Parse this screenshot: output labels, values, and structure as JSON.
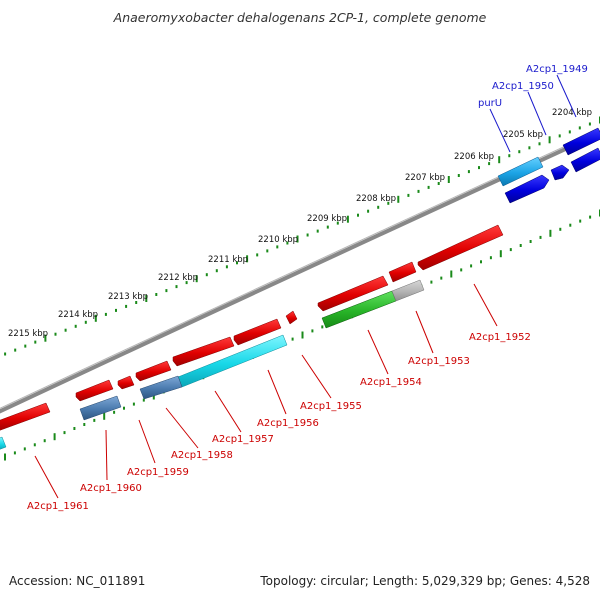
{
  "title": "Anaeromyxobacter dehalogenans 2CP-1, complete genome",
  "footer": {
    "accession": "Accession: NC_011891",
    "info": "Topology: circular; Length: 5,029,329 bp; Genes: 4,528"
  },
  "colors": {
    "backbone": "#808080",
    "ticks": "#1a8a1a",
    "forward_gene_label": "#1a1acc",
    "reverse_gene_label": "#cc0000",
    "connector_blue": "#1a1acc",
    "connector_red": "#cc0000"
  },
  "kbp_labels": [
    "2204 kbp",
    "2205 kbp",
    "2206 kbp",
    "2207 kbp",
    "2208 kbp",
    "2209 kbp",
    "2210 kbp",
    "2211 kbp",
    "2212 kbp",
    "2213 kbp",
    "2214 kbp",
    "2215 kbp"
  ],
  "genes_top": [
    {
      "label": "A2cp1_1949",
      "color": "blue"
    },
    {
      "label": "A2cp1_1950",
      "color": "blue"
    },
    {
      "label": "purU",
      "color": "blue"
    }
  ],
  "genes_bottom": [
    {
      "label": "A2cp1_1952",
      "color": "red"
    },
    {
      "label": "A2cp1_1953",
      "color": "red"
    },
    {
      "label": "A2cp1_1954",
      "color": "red"
    },
    {
      "label": "A2cp1_1955",
      "color": "red"
    },
    {
      "label": "A2cp1_1956",
      "color": "red"
    },
    {
      "label": "A2cp1_1957",
      "color": "red"
    },
    {
      "label": "A2cp1_1958",
      "color": "red"
    },
    {
      "label": "A2cp1_1959",
      "color": "red"
    },
    {
      "label": "A2cp1_1960",
      "color": "red"
    },
    {
      "label": "A2cp1_1961",
      "color": "red"
    }
  ]
}
